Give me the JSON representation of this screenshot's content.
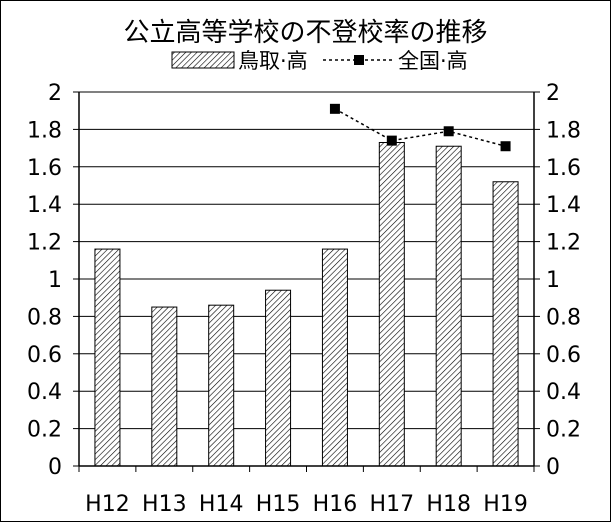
{
  "chart_data": {
    "type": "bar",
    "title": "公立高等学校の不登校率の推移",
    "categories": [
      "H12",
      "H13",
      "H14",
      "H15",
      "H16",
      "H17",
      "H18",
      "H19"
    ],
    "series": [
      {
        "name": "鳥取·高",
        "kind": "bar",
        "values": [
          1.16,
          0.85,
          0.86,
          0.94,
          1.16,
          1.73,
          1.71,
          1.52
        ]
      },
      {
        "name": "全国·高",
        "kind": "line",
        "values": [
          null,
          null,
          null,
          null,
          1.91,
          1.74,
          1.79,
          1.71
        ]
      }
    ],
    "ylim": [
      0,
      2
    ],
    "yticks": [
      "0",
      "0.2",
      "0.4",
      "0.6",
      "0.8",
      "1",
      "1.2",
      "1.4",
      "1.6",
      "1.8",
      "2"
    ],
    "ytick_values": [
      0,
      0.2,
      0.4,
      0.6,
      0.8,
      1,
      1.2,
      1.4,
      1.6,
      1.8,
      2
    ],
    "secondary_yticks": [
      "0",
      "0.2",
      "0.4",
      "0.6",
      "0.8",
      "1",
      "1.2",
      "1.4",
      "1.6",
      "1.8",
      "2"
    ],
    "grid": true,
    "legend": "top-center"
  }
}
